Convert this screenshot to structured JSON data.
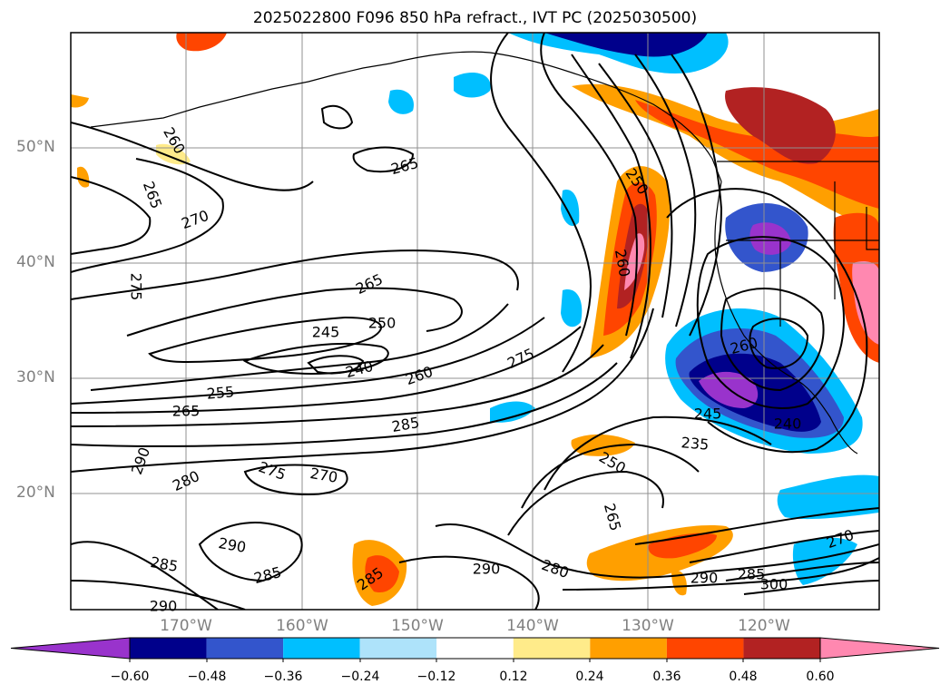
{
  "title": "2025022800 F096 850 hPa refract., IVT PC (2025030500)",
  "axes": {
    "lat_labels": [
      "50°N",
      "40°N",
      "30°N",
      "20°N"
    ],
    "lon_labels": [
      "170°W",
      "160°W",
      "150°W",
      "140°W",
      "130°W",
      "120°W"
    ]
  },
  "colorbar": {
    "ticks": [
      "−0.60",
      "−0.48",
      "−0.36",
      "−0.24",
      "−0.12",
      "0.12",
      "0.24",
      "0.36",
      "0.48",
      "0.60"
    ],
    "colors": [
      "#9933cc",
      "#00008b",
      "#3355cc",
      "#00bfff",
      "#aee3fa",
      "#ffffff",
      "#ffeb8a",
      "#ff9f00",
      "#ff4500",
      "#b22222",
      "#ff88b0"
    ],
    "extend": "both"
  },
  "contour_labels": [
    "260",
    "265",
    "270",
    "275",
    "265",
    "265",
    "250",
    "260",
    "245",
    "250",
    "240",
    "255",
    "265",
    "260",
    "275",
    "285",
    "290",
    "280",
    "275",
    "270",
    "290",
    "285",
    "285",
    "285",
    "290",
    "280",
    "265",
    "250",
    "235",
    "245",
    "240",
    "260",
    "290",
    "285",
    "300",
    "270",
    "290"
  ],
  "colors": {
    "frame": "#000000",
    "grid": "#909090",
    "axis_text": "#808080"
  }
}
